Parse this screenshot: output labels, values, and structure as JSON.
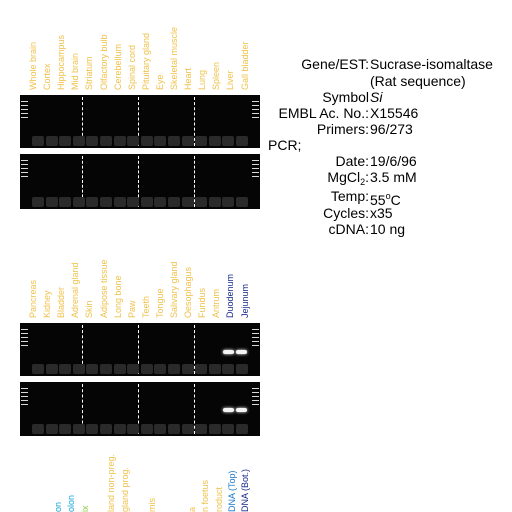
{
  "lanes_top": [
    "Whole brain",
    "Cortex",
    "Hippocampus",
    "Mid brain",
    "Striatum",
    "Olfactory bulb",
    "Cerebellum",
    "Spinal cord",
    "Pituitary gland",
    "Eye",
    "Skeletal muscle",
    "Heart",
    "Lung",
    "Spleen",
    "Liver",
    "Gall bladder"
  ],
  "lanes_middle": [
    {
      "label": "Pancreas",
      "color": "#f0c24b"
    },
    {
      "label": "Kidney",
      "color": "#f0c24b"
    },
    {
      "label": "Bladder",
      "color": "#f0c24b"
    },
    {
      "label": "Adrenal gland",
      "color": "#f0c24b"
    },
    {
      "label": "Skin",
      "color": "#f0c24b"
    },
    {
      "label": "Adipose tissue",
      "color": "#f0c24b"
    },
    {
      "label": "Long bone",
      "color": "#f0c24b"
    },
    {
      "label": "Paw",
      "color": "#f0c24b"
    },
    {
      "label": "Teeth",
      "color": "#f0c24b"
    },
    {
      "label": "Tongue",
      "color": "#f0c24b"
    },
    {
      "label": "Salivary gland",
      "color": "#f0c24b"
    },
    {
      "label": "Oesophagus",
      "color": "#f0c24b"
    },
    {
      "label": "Fundus",
      "color": "#f0c24b"
    },
    {
      "label": "Antrum",
      "color": "#f0c24b"
    },
    {
      "label": "Duodenum",
      "color": "#1a2a8c"
    },
    {
      "label": "Jejunum",
      "color": "#1a2a8c"
    }
  ],
  "lanes_bottom": [
    {
      "label": "",
      "color": "#f0c24b"
    },
    {
      "label": "",
      "color": "#f0c24b"
    },
    {
      "label": "on",
      "color": "#18a6d8"
    },
    {
      "label": "olon",
      "color": "#18a6d8"
    },
    {
      "label": "ix",
      "color": "#8cc83c"
    },
    {
      "label": "",
      "color": "#f0c24b"
    },
    {
      "label": "land non-preg.",
      "color": "#f0c24b"
    },
    {
      "label": "gland prog.",
      "color": "#f0c24b"
    },
    {
      "label": "",
      "color": "#f0c24b"
    },
    {
      "label": "mis",
      "color": "#f0c24b"
    },
    {
      "label": "",
      "color": "#f0c24b"
    },
    {
      "label": "",
      "color": "#f0c24b"
    },
    {
      "label": "a",
      "color": "#f0c24b"
    },
    {
      "label": "n foetus",
      "color": "#f0c24b"
    },
    {
      "label": "roduct",
      "color": "#f0c24b"
    },
    {
      "label": "DNA (Top)",
      "color": "#1a7acc"
    },
    {
      "label": "DNA (Bot.)",
      "color": "#1a2a8c"
    }
  ],
  "info": {
    "gene_key": "Gene/EST:",
    "gene_val": "Sucrase-isomaltase",
    "gene_val2": "(Rat sequence)",
    "symbol_key": "Symbol",
    "symbol_val": "Si",
    "embl_key": "EMBL Ac. No.:",
    "embl_val": "X15546",
    "primers_key": "Primers:",
    "primers_val": "96/273",
    "pcr_key": "PCR;",
    "date_key": "Date:",
    "date_val": "19/6/96",
    "mg_key_a": "MgCl",
    "mg_key_sub": "2",
    "mg_key_b": ":",
    "mg_val": "3.5 mM",
    "temp_key": "Temp:",
    "temp_val_a": "55",
    "temp_val_sup": "o",
    "temp_val_b": "C",
    "cycles_key": "Cycles:",
    "cycles_val": "x35",
    "cdna_key": "cDNA:",
    "cdna_val": "10 ng"
  },
  "colors": {
    "lane_label": "#f0c24b",
    "gel": "#050505",
    "band": "#f4f4f4"
  }
}
